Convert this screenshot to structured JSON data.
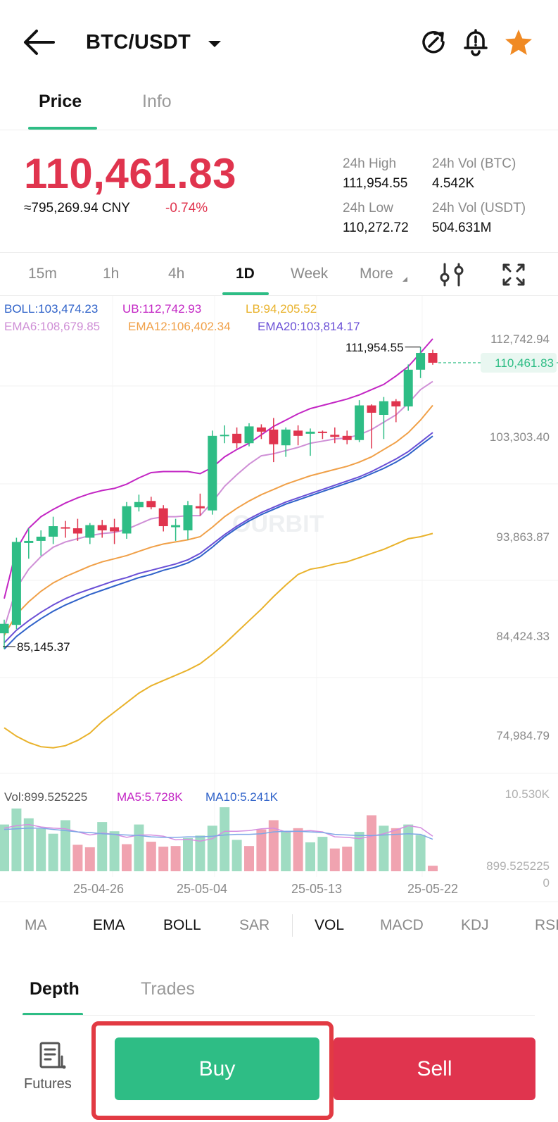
{
  "header": {
    "pair": "BTC/USDT",
    "icons": [
      "back-arrow-icon",
      "chevron-down-icon",
      "share-refresh-icon",
      "price-alert-bell-icon",
      "favorite-star-icon"
    ],
    "star_color": "#f08a24"
  },
  "tabs": {
    "price": "Price",
    "info": "Info"
  },
  "ticker": {
    "last_price": "110,461.83",
    "cny": "≈795,269.94 CNY",
    "change_pct": "-0.74%",
    "high_label": "24h High",
    "high_value": "111,954.55",
    "low_label": "24h Low",
    "low_value": "110,272.72",
    "vol_btc_label": "24h Vol (BTC)",
    "vol_btc_value": "4.542K",
    "vol_usdt_label": "24h Vol (USDT)",
    "vol_usdt_value": "504.631M"
  },
  "intervals": {
    "m15": "15m",
    "h1": "1h",
    "h4": "4h",
    "d1": "1D",
    "week": "Week",
    "more": "More",
    "selected": "1D"
  },
  "legends": {
    "boll": "BOLL:103,474.23",
    "ub": "UB:112,742.93",
    "lb": "LB:94,205.52",
    "ema6": "EMA6:108,679.85",
    "ema12": "EMA12:106,402.34",
    "ema20": "EMA20:103,814.17"
  },
  "chart_data": {
    "type": "candlestick",
    "price_axis_ticks": [
      "112,742.94",
      "103,303.40",
      "93,863.87",
      "84,424.33",
      "74,984.79"
    ],
    "price_axis_range": [
      74984.79,
      112742.94
    ],
    "current_price_label": "110,461.83",
    "high_marker": "111,954.55",
    "low_marker": "85,145.37",
    "date_ticks": [
      "25-04-26",
      "25-05-04",
      "25-05-13",
      "25-05-22"
    ],
    "watermark": "OURBIT",
    "candles": [
      {
        "o": 84700,
        "h": 86000,
        "l": 83200,
        "c": 85600
      },
      {
        "o": 85500,
        "h": 93800,
        "l": 85100,
        "c": 93400
      },
      {
        "o": 93300,
        "h": 94700,
        "l": 91800,
        "c": 93500
      },
      {
        "o": 93500,
        "h": 94500,
        "l": 92100,
        "c": 93900
      },
      {
        "o": 93900,
        "h": 95800,
        "l": 93200,
        "c": 94900
      },
      {
        "o": 94800,
        "h": 95400,
        "l": 93800,
        "c": 94700
      },
      {
        "o": 94700,
        "h": 95600,
        "l": 93500,
        "c": 94200
      },
      {
        "o": 93800,
        "h": 95200,
        "l": 93200,
        "c": 95000
      },
      {
        "o": 95000,
        "h": 95500,
        "l": 93800,
        "c": 94500
      },
      {
        "o": 94800,
        "h": 95600,
        "l": 93200,
        "c": 94400
      },
      {
        "o": 94200,
        "h": 97200,
        "l": 93700,
        "c": 96800
      },
      {
        "o": 96700,
        "h": 97900,
        "l": 96300,
        "c": 97200
      },
      {
        "o": 97300,
        "h": 97700,
        "l": 96500,
        "c": 96700
      },
      {
        "o": 96600,
        "h": 96900,
        "l": 94400,
        "c": 94900
      },
      {
        "o": 94800,
        "h": 95600,
        "l": 93500,
        "c": 95000
      },
      {
        "o": 94500,
        "h": 97300,
        "l": 93600,
        "c": 96900
      },
      {
        "o": 96800,
        "h": 98000,
        "l": 95900,
        "c": 96600
      },
      {
        "o": 96400,
        "h": 104000,
        "l": 96000,
        "c": 103500
      },
      {
        "o": 103500,
        "h": 104500,
        "l": 102800,
        "c": 103600
      },
      {
        "o": 103700,
        "h": 104300,
        "l": 102300,
        "c": 102800
      },
      {
        "o": 102800,
        "h": 104700,
        "l": 102500,
        "c": 104400
      },
      {
        "o": 104300,
        "h": 104600,
        "l": 103200,
        "c": 103900
      },
      {
        "o": 104100,
        "h": 105200,
        "l": 101000,
        "c": 102700
      },
      {
        "o": 102600,
        "h": 104300,
        "l": 101500,
        "c": 104100
      },
      {
        "o": 104000,
        "h": 104500,
        "l": 102600,
        "c": 103500
      },
      {
        "o": 103700,
        "h": 104200,
        "l": 101600,
        "c": 103900
      },
      {
        "o": 103900,
        "h": 104000,
        "l": 103200,
        "c": 103800
      },
      {
        "o": 103600,
        "h": 104300,
        "l": 102800,
        "c": 103400
      },
      {
        "o": 103500,
        "h": 104000,
        "l": 102700,
        "c": 103100
      },
      {
        "o": 103100,
        "h": 106900,
        "l": 102900,
        "c": 106400
      },
      {
        "o": 106400,
        "h": 106500,
        "l": 102300,
        "c": 105700
      },
      {
        "o": 105500,
        "h": 107200,
        "l": 103200,
        "c": 106800
      },
      {
        "o": 106800,
        "h": 107000,
        "l": 104800,
        "c": 106300
      },
      {
        "o": 106300,
        "h": 110300,
        "l": 105900,
        "c": 109800
      },
      {
        "o": 109800,
        "h": 111954.55,
        "l": 109000,
        "c": 111400
      },
      {
        "o": 111400,
        "h": 111700,
        "l": 110272.72,
        "c": 110461.83
      }
    ],
    "series": [
      {
        "name": "UB",
        "color": "#c326c4",
        "values": [
          88000,
          92700,
          94700,
          95800,
          96500,
          97100,
          97600,
          98000,
          98300,
          98500,
          98900,
          99500,
          100000,
          100100,
          100100,
          100100,
          99900,
          100500,
          101500,
          102200,
          102800,
          103600,
          104400,
          105000,
          105600,
          106100,
          106400,
          106700,
          107000,
          107400,
          107900,
          108400,
          109200,
          110100,
          111400,
          112742.94
        ]
      },
      {
        "name": "EMA6",
        "color": "#cf8fd6",
        "values": [
          85200,
          89000,
          90800,
          92000,
          92900,
          93400,
          93700,
          94000,
          94200,
          94300,
          94600,
          95100,
          95600,
          95800,
          95800,
          95900,
          95900,
          97200,
          98700,
          99800,
          100800,
          101600,
          101800,
          102100,
          102400,
          102800,
          103000,
          103200,
          103300,
          103600,
          104100,
          104800,
          105500,
          106600,
          107900,
          108679.85
        ]
      },
      {
        "name": "EMA12",
        "color": "#f0a048",
        "values": [
          84500,
          86500,
          87700,
          88700,
          89500,
          90100,
          90600,
          91100,
          91500,
          91800,
          92100,
          92500,
          92900,
          93200,
          93400,
          93600,
          93900,
          94800,
          95800,
          96600,
          97300,
          97900,
          98400,
          98900,
          99300,
          99700,
          100000,
          100300,
          100600,
          101000,
          101500,
          102200,
          102900,
          103800,
          105000,
          106402.34
        ]
      },
      {
        "name": "EMA20",
        "color": "#6a4fd6",
        "values": [
          83800,
          85000,
          85900,
          86700,
          87400,
          88000,
          88500,
          88900,
          89300,
          89700,
          90000,
          90400,
          90700,
          91000,
          91300,
          91700,
          92300,
          93200,
          94100,
          94900,
          95600,
          96200,
          96700,
          97200,
          97600,
          98000,
          98400,
          98800,
          99200,
          99600,
          100100,
          100700,
          101300,
          102000,
          102900,
          103814.17
        ]
      },
      {
        "name": "BOLL",
        "color": "#2f62c9",
        "values": [
          83200,
          84400,
          85300,
          86100,
          86800,
          87400,
          87900,
          88400,
          88800,
          89200,
          89600,
          90000,
          90300,
          90700,
          91000,
          91400,
          92000,
          92900,
          93900,
          94700,
          95400,
          96000,
          96500,
          97000,
          97400,
          97800,
          98200,
          98600,
          99000,
          99400,
          99900,
          100400,
          101000,
          101700,
          102600,
          103474.23
        ]
      },
      {
        "name": "LB",
        "color": "#e9b22b",
        "values": [
          75700,
          74900,
          74300,
          73900,
          73800,
          74000,
          74500,
          75200,
          76300,
          77200,
          78100,
          79000,
          79700,
          80200,
          80700,
          81200,
          81800,
          82700,
          83700,
          84800,
          85900,
          87000,
          88200,
          89300,
          90300,
          90800,
          91000,
          91300,
          91500,
          91900,
          92300,
          92700,
          93200,
          93700,
          93900,
          94205.52
        ]
      }
    ],
    "volume": {
      "legend_vol": "Vol:899.525225",
      "legend_ma5": "MA5:5.728K",
      "legend_ma10": "MA10:5.241K",
      "axis_max": "10.530K",
      "axis_cur": "899.525225",
      "axis_zero": "0",
      "bars": [
        7.6,
        10.2,
        8.6,
        6.9,
        6.1,
        8.3,
        4.3,
        3.9,
        8.0,
        6.5,
        4.4,
        7.6,
        4.8,
        4.0,
        4.1,
        5.4,
        5.8,
        7.4,
        10.4,
        5.1,
        4.1,
        6.8,
        8.3,
        6.5,
        7.0,
        4.7,
        5.6,
        3.7,
        4.0,
        6.4,
        9.1,
        7.4,
        7.0,
        7.6,
        5.9,
        0.9
      ],
      "up": [
        true,
        true,
        true,
        true,
        true,
        true,
        false,
        false,
        true,
        true,
        false,
        true,
        false,
        false,
        false,
        true,
        true,
        true,
        true,
        true,
        false,
        false,
        false,
        true,
        false,
        true,
        true,
        false,
        false,
        true,
        false,
        true,
        false,
        true,
        true,
        false
      ],
      "ma5": [
        7.0,
        7.4,
        7.6,
        7.2,
        7.0,
        6.9,
        6.4,
        5.9,
        6.2,
        6.0,
        5.5,
        5.9,
        5.9,
        5.7,
        5.1,
        5.2,
        4.9,
        5.3,
        6.5,
        6.5,
        6.6,
        6.9,
        7.0,
        6.4,
        6.5,
        6.6,
        6.4,
        5.6,
        5.5,
        5.3,
        5.7,
        6.1,
        6.7,
        7.4,
        7.1,
        5.7
      ],
      "ma10": [
        6.8,
        6.9,
        7.0,
        7.0,
        6.8,
        6.6,
        6.4,
        6.3,
        6.1,
        6.0,
        5.9,
        5.8,
        5.6,
        5.5,
        5.5,
        5.6,
        5.6,
        5.7,
        5.9,
        6.0,
        6.0,
        6.1,
        6.4,
        6.5,
        6.5,
        6.4,
        6.3,
        6.0,
        5.9,
        5.8,
        5.8,
        5.9,
        6.0,
        6.1,
        6.0,
        5.2
      ]
    },
    "colors": {
      "up": "#2ebd85",
      "down": "#e0344e",
      "up_vol": "#9fdcc2",
      "down_vol": "#f0a3b0"
    }
  },
  "indicators": {
    "ma": "MA",
    "ema": "EMA",
    "boll": "BOLL",
    "sar": "SAR",
    "vol": "VOL",
    "macd": "MACD",
    "kdj": "KDJ",
    "rsi": "RSI",
    "active": [
      "EMA",
      "BOLL",
      "VOL"
    ]
  },
  "bottom": {
    "depth_tab": "Depth",
    "trades_tab": "Trades",
    "futures_label": "Futures",
    "buy_label": "Buy",
    "sell_label": "Sell",
    "highlight_color": "#e23a43"
  }
}
